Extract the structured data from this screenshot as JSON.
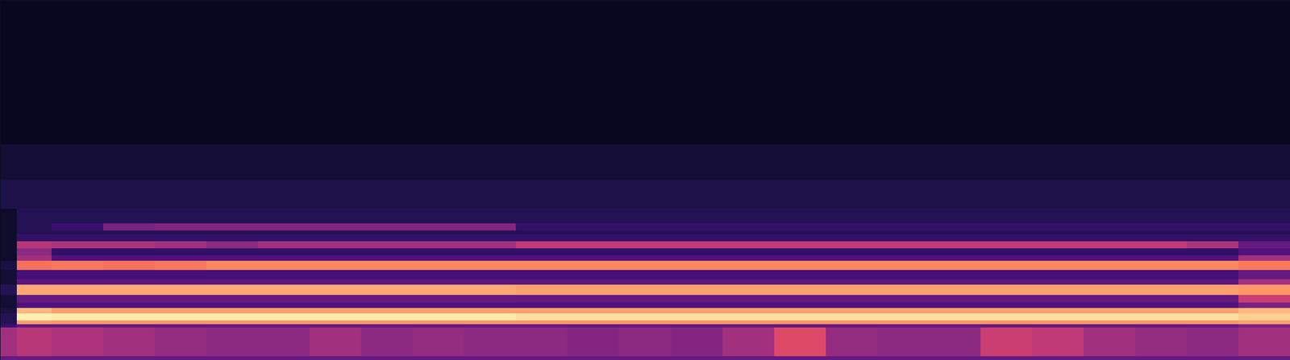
{
  "chart_data": {
    "type": "heatmap",
    "color": "magma",
    "tick_labels": false,
    "xlim": [
      0,
      100
    ],
    "ylim": [
      0,
      100
    ],
    "clim": [
      0,
      100
    ],
    "x_bins": [
      0,
      1.3,
      4,
      8,
      12,
      16,
      20,
      24,
      28,
      32,
      36,
      40,
      44,
      48,
      52,
      56,
      60,
      64,
      68,
      72,
      76,
      80,
      84,
      88,
      92,
      96,
      100
    ],
    "y_bins": [
      0,
      1,
      9,
      10,
      11,
      13,
      14.5,
      16,
      18,
      21,
      22.5,
      25,
      27.5,
      29,
      31,
      33,
      35,
      36,
      38,
      42,
      50,
      60,
      100
    ],
    "cells": [
      [
        30,
        30,
        30,
        30,
        30,
        30,
        30,
        30,
        30,
        30,
        30,
        30,
        30,
        30,
        30,
        30,
        30,
        30,
        30,
        30,
        30,
        30,
        30,
        30,
        30,
        30
      ],
      [
        45,
        50,
        48,
        45,
        42,
        40,
        40,
        45,
        40,
        42,
        40,
        40,
        38,
        40,
        38,
        45,
        60,
        42,
        40,
        40,
        55,
        52,
        45,
        42,
        40,
        45
      ],
      [
        20,
        30,
        30,
        30,
        30,
        30,
        30,
        30,
        30,
        30,
        30,
        30,
        30,
        30,
        30,
        30,
        30,
        30,
        30,
        30,
        30,
        30,
        30,
        30,
        30,
        35
      ],
      [
        15,
        80,
        78,
        78,
        78,
        78,
        78,
        78,
        78,
        78,
        78,
        78,
        78,
        78,
        78,
        78,
        78,
        78,
        78,
        78,
        78,
        78,
        78,
        78,
        78,
        80
      ],
      [
        15,
        97,
        96,
        96,
        96,
        96,
        96,
        96,
        96,
        96,
        96,
        93,
        93,
        93,
        93,
        93,
        93,
        93,
        93,
        93,
        93,
        93,
        93,
        93,
        93,
        90
      ],
      [
        12,
        85,
        80,
        80,
        80,
        80,
        80,
        80,
        80,
        80,
        80,
        80,
        80,
        80,
        80,
        80,
        80,
        80,
        80,
        80,
        80,
        80,
        80,
        80,
        80,
        85
      ],
      [
        10,
        25,
        25,
        25,
        25,
        25,
        25,
        25,
        25,
        25,
        25,
        25,
        25,
        25,
        25,
        25,
        25,
        25,
        25,
        25,
        25,
        25,
        25,
        25,
        25,
        35
      ],
      [
        10,
        30,
        30,
        30,
        30,
        30,
        30,
        30,
        30,
        30,
        30,
        30,
        30,
        30,
        30,
        30,
        30,
        30,
        30,
        30,
        30,
        30,
        30,
        30,
        30,
        55
      ],
      [
        15,
        82,
        82,
        82,
        82,
        82,
        82,
        82,
        82,
        82,
        82,
        80,
        80,
        80,
        80,
        80,
        80,
        80,
        80,
        80,
        80,
        80,
        80,
        80,
        80,
        78
      ],
      [
        10,
        28,
        28,
        28,
        28,
        28,
        28,
        28,
        28,
        28,
        28,
        28,
        28,
        28,
        28,
        28,
        28,
        28,
        28,
        28,
        28,
        28,
        28,
        28,
        28,
        45
      ],
      [
        10,
        22,
        22,
        22,
        22,
        22,
        22,
        22,
        22,
        22,
        22,
        22,
        22,
        22,
        22,
        22,
        22,
        22,
        22,
        22,
        22,
        22,
        22,
        22,
        22,
        30
      ],
      [
        12,
        70,
        72,
        70,
        72,
        75,
        75,
        75,
        75,
        75,
        75,
        75,
        75,
        75,
        75,
        75,
        75,
        75,
        75,
        75,
        75,
        75,
        75,
        75,
        75,
        72
      ],
      [
        8,
        45,
        25,
        25,
        25,
        25,
        25,
        25,
        25,
        25,
        25,
        25,
        25,
        25,
        25,
        25,
        25,
        25,
        25,
        25,
        25,
        25,
        25,
        25,
        25,
        45
      ],
      [
        8,
        40,
        18,
        18,
        18,
        18,
        18,
        18,
        18,
        18,
        18,
        18,
        18,
        18,
        18,
        18,
        18,
        18,
        18,
        18,
        18,
        18,
        18,
        18,
        18,
        25
      ],
      [
        8,
        50,
        48,
        48,
        45,
        40,
        45,
        45,
        45,
        45,
        45,
        52,
        52,
        52,
        52,
        52,
        52,
        52,
        52,
        52,
        52,
        52,
        52,
        52,
        48,
        30
      ],
      [
        8,
        18,
        18,
        18,
        18,
        18,
        18,
        18,
        18,
        18,
        18,
        18,
        18,
        18,
        18,
        18,
        18,
        18,
        18,
        18,
        18,
        18,
        18,
        18,
        18,
        18
      ],
      [
        8,
        15,
        15,
        15,
        15,
        15,
        15,
        15,
        15,
        15,
        15,
        15,
        15,
        15,
        15,
        15,
        15,
        15,
        15,
        15,
        15,
        15,
        15,
        15,
        15,
        15
      ],
      [
        8,
        15,
        20,
        35,
        38,
        38,
        38,
        38,
        38,
        38,
        38,
        18,
        18,
        18,
        18,
        18,
        18,
        18,
        18,
        18,
        18,
        18,
        18,
        18,
        18,
        18
      ],
      [
        8,
        15,
        15,
        15,
        15,
        15,
        15,
        15,
        15,
        15,
        15,
        15,
        15,
        15,
        15,
        15,
        15,
        15,
        15,
        15,
        15,
        15,
        15,
        15,
        15,
        15
      ],
      [
        13,
        13,
        13,
        13,
        13,
        13,
        13,
        13,
        13,
        13,
        13,
        13,
        13,
        13,
        13,
        13,
        13,
        13,
        13,
        13,
        13,
        13,
        13,
        13,
        13,
        13
      ],
      [
        10,
        10,
        10,
        10,
        10,
        10,
        10,
        10,
        10,
        10,
        10,
        10,
        10,
        10,
        10,
        10,
        10,
        10,
        10,
        10,
        10,
        10,
        10,
        10,
        10,
        10
      ],
      [
        6,
        6,
        6,
        6,
        6,
        6,
        6,
        6,
        6,
        6,
        6,
        6,
        6,
        6,
        6,
        6,
        6,
        6,
        6,
        6,
        6,
        6,
        6,
        6,
        6,
        6
      ]
    ]
  }
}
